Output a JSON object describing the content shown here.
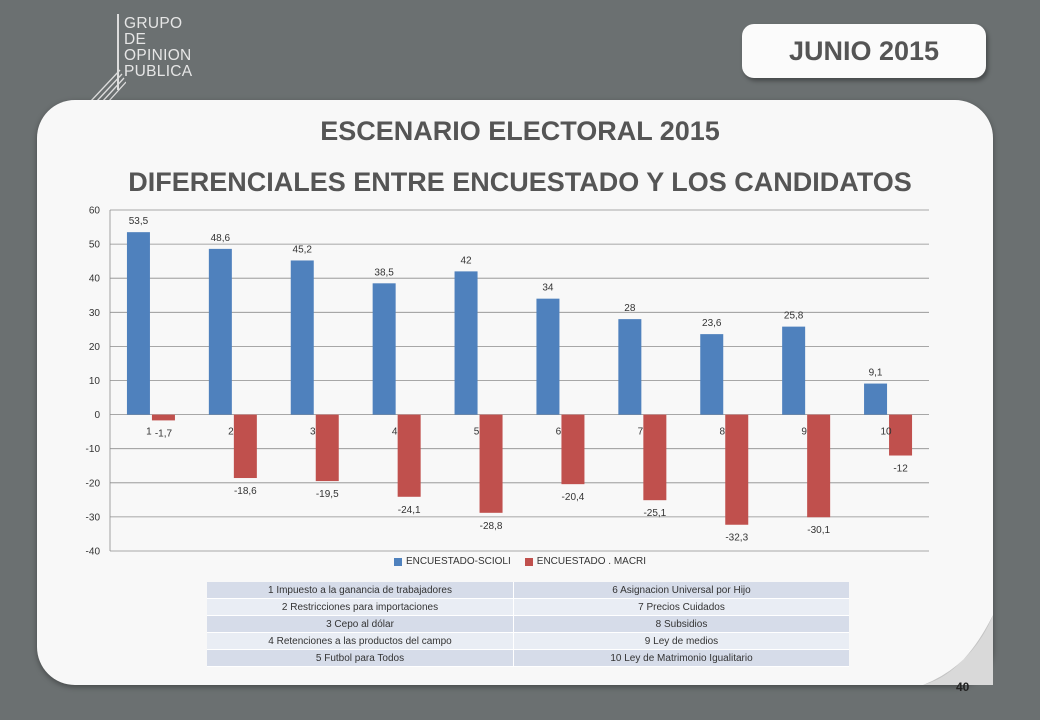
{
  "logo": {
    "lines": [
      "GRUPO",
      "DE",
      "OPINION",
      "PUBLICA"
    ]
  },
  "header": {
    "date": "JUNIO 2015"
  },
  "titles": {
    "line1": "ESCENARIO ELECTORAL 2015",
    "line2": "DIFERENCIALES ENTRE ENCUESTADO Y LOS CANDIDATOS"
  },
  "chart_data": {
    "type": "bar",
    "categories": [
      "1",
      "2",
      "3",
      "4",
      "5",
      "6",
      "7",
      "8",
      "9",
      "10"
    ],
    "series": [
      {
        "name": "ENCUESTADO-SCIOLI",
        "color": "#4f81bd",
        "values": [
          53.5,
          48.6,
          45.2,
          38.5,
          42,
          34,
          28,
          23.6,
          25.8,
          9.1
        ],
        "labels": [
          "53,5",
          "48,6",
          "45,2",
          "38,5",
          "42",
          "34",
          "28",
          "23,6",
          "25,8",
          "9,1"
        ]
      },
      {
        "name": "ENCUESTADO . MACRI",
        "color": "#c0504d",
        "values": [
          -1.7,
          -18.6,
          -19.5,
          -24.1,
          -28.8,
          -20.4,
          -25.1,
          -32.3,
          -30.1,
          -12
        ],
        "labels": [
          "-1,7",
          "-18,6",
          "-19,5",
          "-24,1",
          "-28,8",
          "-20,4",
          "-25,1",
          "-32,3",
          "-30,1",
          "-12"
        ]
      }
    ],
    "yticks": [
      "60",
      "50",
      "40",
      "30",
      "20",
      "10",
      "0",
      "-10",
      "-20",
      "-30",
      "-40"
    ],
    "ylim": [
      -40,
      60
    ],
    "grid": true,
    "legend": "bottom"
  },
  "notes": [
    [
      "1 Impuesto a la ganancia de trabajadores",
      "6  Asignacion Universal por Hijo"
    ],
    [
      "2 Restricciones para importaciones",
      "7  Precios Cuidados"
    ],
    [
      "3 Cepo al dólar",
      "8  Subsidios"
    ],
    [
      "4  Retenciones a las productos del campo",
      "9  Ley de medios"
    ],
    [
      "5 Futbol para Todos",
      "10  Ley de Matrimonio Igualitario"
    ]
  ],
  "page_number": "40"
}
